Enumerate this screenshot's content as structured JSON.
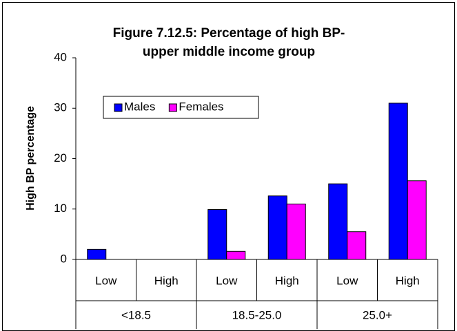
{
  "chart_data": {
    "type": "bar",
    "title": [
      "Figure 7.12.5: Percentage of high BP-",
      "upper middle income group"
    ],
    "y_label": "High BP percentage",
    "categories": [
      "Low",
      "High",
      "Low",
      "High",
      "Low",
      "High"
    ],
    "groups": [
      "<18.5",
      "18.5-25.0",
      "25.0+"
    ],
    "series": [
      {
        "name": "Males",
        "color": "#0000ff",
        "values": [
          2.0,
          0,
          9.9,
          12.6,
          15.0,
          31.0
        ]
      },
      {
        "name": "Females",
        "color": "#ff00ff",
        "values": [
          0,
          0,
          1.6,
          11.0,
          5.5,
          15.6
        ]
      }
    ],
    "ylim": [
      0,
      40
    ],
    "yticks": [
      0,
      10,
      20,
      30,
      40
    ],
    "grid": false,
    "legend": "upper-left"
  }
}
